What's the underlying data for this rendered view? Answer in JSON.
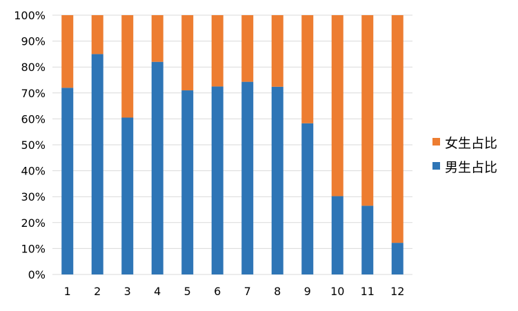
{
  "chart_data": {
    "type": "bar",
    "stacked": true,
    "percent": true,
    "categories": [
      "1",
      "2",
      "3",
      "4",
      "5",
      "6",
      "7",
      "8",
      "9",
      "10",
      "11",
      "12"
    ],
    "series": [
      {
        "name": "男生占比",
        "color": "#2e75b6",
        "values": [
          0.72,
          0.85,
          0.605,
          0.82,
          0.71,
          0.725,
          0.743,
          0.724,
          0.583,
          0.302,
          0.265,
          0.122
        ]
      },
      {
        "name": "女生占比",
        "color": "#ed7d31",
        "values": [
          0.28,
          0.15,
          0.395,
          0.18,
          0.29,
          0.275,
          0.257,
          0.276,
          0.417,
          0.698,
          0.735,
          0.878
        ]
      }
    ],
    "yticks": [
      "0%",
      "10%",
      "20%",
      "30%",
      "40%",
      "50%",
      "60%",
      "70%",
      "80%",
      "90%",
      "100%"
    ],
    "ylim": [
      0,
      1
    ],
    "grid": true,
    "legend": "right"
  }
}
